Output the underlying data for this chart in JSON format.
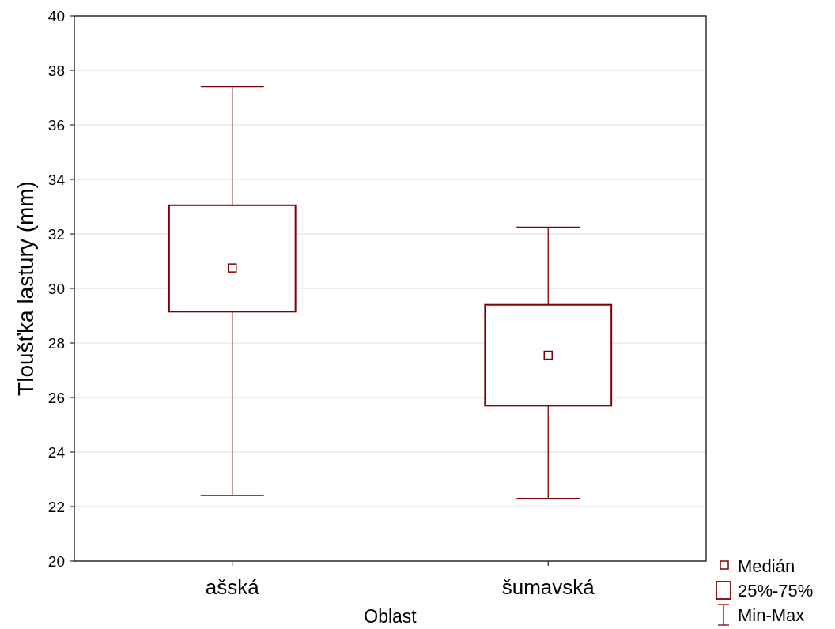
{
  "chart_data": {
    "type": "box",
    "xlabel": "Oblast",
    "ylabel": "Tloušťka lastury (mm)",
    "categories": [
      "ašská",
      "šumavská"
    ],
    "color": "#800000",
    "boxes": [
      {
        "low": 22.4,
        "q1": 29.15,
        "median": 30.75,
        "q3": 33.05,
        "high": 37.4
      },
      {
        "low": 22.3,
        "q1": 25.7,
        "median": 27.55,
        "q3": 29.4,
        "high": 32.25
      }
    ],
    "ylim": [
      20,
      40
    ],
    "yticks": [
      20,
      22,
      24,
      26,
      28,
      30,
      32,
      34,
      36,
      38,
      40
    ],
    "grid": "y",
    "annotations": [
      "Medián",
      "25%-75%",
      "Min-Max"
    ]
  }
}
